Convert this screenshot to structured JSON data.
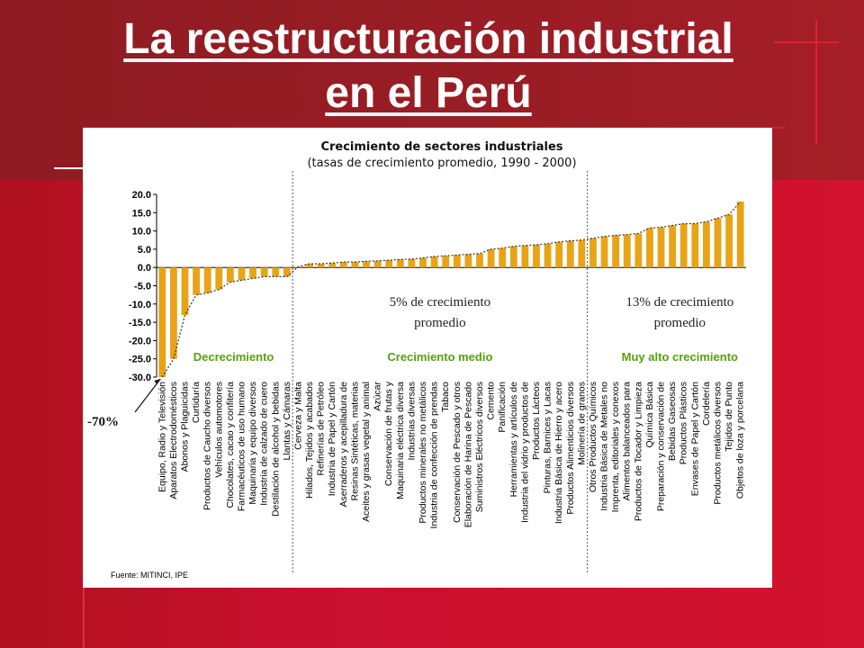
{
  "slide": {
    "title_line1": "La reestructuración industrial",
    "title_line2": "en el Perú",
    "source": "Fuente: MITINCI, IPE"
  },
  "colors": {
    "bar": "#e8a317",
    "background": "#c8102e",
    "panel": "#ffffff",
    "zone_label": "#55a010"
  },
  "chart_data": {
    "type": "bar",
    "title": "Crecimiento de sectores industriales",
    "subtitle": "(tasas de crecimiento promedio, 1990 - 2000)",
    "ylim": [
      -30,
      20
    ],
    "yticks": [
      "20.0",
      "15.0",
      "10.0",
      "5.0",
      "0.0",
      "-5.0",
      "-10.0",
      "-15.0",
      "-20.0",
      "-25.0",
      "-30.0"
    ],
    "categories": [
      "Equipo, Radio y Televisión",
      "Aparatos Electrodomésticos",
      "Abonos y Plaguicidas",
      "Curtiduría",
      "Productos de Caucho diversos",
      "Vehículos automotores",
      "Chocolates, cacao y confitería",
      "Farmacéuticos de uso humano",
      "Maquinaria y equipo diversos",
      "Industria de calzado de cuero",
      "Destilación de alcohol y bebidas",
      "Llantas y Cámaras",
      "Cerveza y Malta",
      "Hilados, Tejidos y acabados",
      "Refinerías de Petróleo",
      "Industria de Papel y Cartón",
      "Aserraderos y acepilladura de",
      "Resinas Sintéticas, materias",
      "Aceites y grasas vegetal y animal",
      "Azúcar",
      "Conservación de frutas y",
      "Maquinaria eléctrica diversa",
      "Industrias diversas",
      "Productos minerales no metálicos",
      "Industria de confección de prendas",
      "Tabaco",
      "Conservación de Pescado y otros",
      "Elaboración de Harina de Pescado",
      "Suministros Eléctricos diversos",
      "Cemento",
      "Panificación",
      "Herramientas y artículos de",
      "Industria del vidrio y productos de",
      "Productos Lácteos",
      "Pinturas, Barnices y Lacas",
      "Industria Básica de Hierro y acero",
      "Productos Alimenticios diversos",
      "Molinería de granos",
      "Otros Productos Químicos",
      "Industria Básica de Metales no",
      "Imprenta, editoriales y conexos",
      "Alimentos balanceados para",
      "Productos de Tocador y Limpieza",
      "Química Básica",
      "Preparación y conservación de",
      "Bebidas Gaseosas",
      "Productos Plásticos",
      "Envases de Papel y Cartón",
      "Cordelería",
      "Productos metálicos diversos",
      "Tejidos de Punto",
      "Objetos de loza y porcelana"
    ],
    "values": [
      -30,
      -25,
      -13,
      -7.5,
      -7,
      -6,
      -4,
      -3.5,
      -3,
      -2.5,
      -2.5,
      -2.5,
      0.2,
      1,
      1,
      1.2,
      1.5,
      1.5,
      1.7,
      1.8,
      2,
      2.2,
      2.3,
      2.6,
      3,
      3.2,
      3.4,
      3.6,
      3.8,
      5,
      5.3,
      5.8,
      6,
      6.2,
      6.5,
      7,
      7.3,
      7.5,
      8,
      8.5,
      8.8,
      9,
      9.3,
      10.8,
      11,
      11.5,
      12,
      12,
      12.5,
      13.5,
      14.5,
      18
    ],
    "trend": true,
    "zone_dividers_after": [
      11,
      37
    ],
    "zones": [
      {
        "label": "Decrecimiento"
      },
      {
        "label": "Crecimiento medio",
        "note_line1": "5% de crecimiento",
        "note_line2": "promedio"
      },
      {
        "label": "Muy alto crecimiento",
        "note_line1": "13% de crecimiento",
        "note_line2": "promedio"
      }
    ],
    "annotation": "-70%"
  }
}
